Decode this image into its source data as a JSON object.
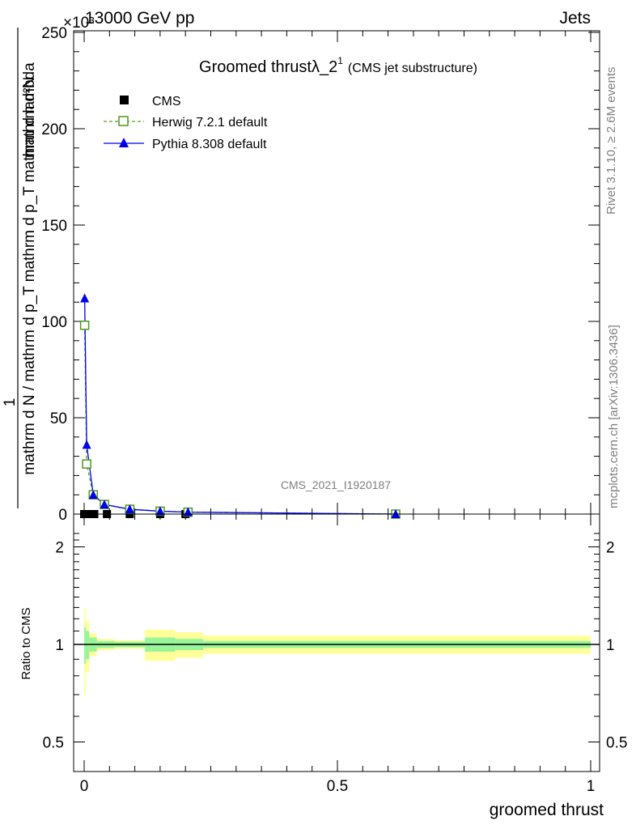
{
  "header": {
    "energy": "13000 GeV pp",
    "exponent": "×10³",
    "category": "Jets"
  },
  "side_labels": {
    "rivet": "Rivet 3.1.10, ≥ 2.6M events",
    "mcplots": "mcplots.cern.ch [arXiv:1306.3436]"
  },
  "watermark": "CMS_2021_I1920187",
  "chart_data": [
    {
      "type": "line",
      "title_main": "Groomed thrustλ_2",
      "title_sup": "1",
      "title_sub": "(CMS jet substructure)",
      "ylabel_numerator": "mathrm d²N",
      "ylabel_denominator": "mathrm d N / mathrm d p_T mathrm d p_T mathrm d lambda",
      "ylabel_one": "1",
      "ylim": [
        0,
        250
      ],
      "y_multiplier": "×10³",
      "xlim": [
        0,
        1
      ],
      "yticks": [
        0,
        50,
        100,
        150,
        200,
        250
      ],
      "legend_position": "top-left",
      "series": [
        {
          "name": "CMS",
          "color": "#000000",
          "marker": "square",
          "x": [
            0.0,
            0.01,
            0.02,
            0.045,
            0.09,
            0.15,
            0.2,
            0.615
          ],
          "y": [
            0.0,
            0.0,
            0.0,
            0.0,
            0.0,
            0.0,
            0.0,
            0.0
          ]
        },
        {
          "name": "Herwig 7.2.1 default",
          "color": "#4d9a1a",
          "marker": "open-square",
          "x": [
            0.001,
            0.005,
            0.018,
            0.04,
            0.09,
            0.15,
            0.205,
            0.615
          ],
          "y": [
            98,
            26,
            10,
            5,
            2.5,
            1.5,
            1.0,
            0.0
          ]
        },
        {
          "name": "Pythia 8.308 default",
          "color": "#0000ee",
          "marker": "triangle",
          "x": [
            0.001,
            0.005,
            0.018,
            0.04,
            0.09,
            0.15,
            0.205,
            0.615
          ],
          "y": [
            112,
            36,
            10,
            5,
            2.5,
            1.5,
            1.0,
            0.0
          ]
        }
      ]
    },
    {
      "type": "area",
      "ylabel": "Ratio to CMS",
      "xlabel": "groomed thrust",
      "xlim": [
        0,
        1
      ],
      "ylim": [
        0.4,
        2.3
      ],
      "yticks": [
        0.5,
        1,
        2
      ],
      "ytick_labels": [
        "0.5",
        "1",
        "2"
      ],
      "xticks": [
        0,
        0.5,
        1
      ],
      "xtick_labels": [
        "0",
        "0.5",
        "1"
      ],
      "band_colors": {
        "outer": "#ffff99",
        "inner": "#99f599"
      },
      "bins": [
        {
          "x0": 0.0,
          "x1": 0.003,
          "inner": 0.13,
          "outer": 0.3
        },
        {
          "x0": 0.003,
          "x1": 0.01,
          "inner": 0.1,
          "outer": 0.18
        },
        {
          "x0": 0.01,
          "x1": 0.025,
          "inner": 0.05,
          "outer": 0.08
        },
        {
          "x0": 0.025,
          "x1": 0.06,
          "inner": 0.025,
          "outer": 0.04
        },
        {
          "x0": 0.06,
          "x1": 0.12,
          "inner": 0.02,
          "outer": 0.03
        },
        {
          "x0": 0.12,
          "x1": 0.18,
          "inner": 0.05,
          "outer": 0.11
        },
        {
          "x0": 0.18,
          "x1": 0.235,
          "inner": 0.04,
          "outer": 0.09
        },
        {
          "x0": 0.235,
          "x1": 1.0,
          "inner": 0.025,
          "outer": 0.065
        }
      ]
    }
  ]
}
